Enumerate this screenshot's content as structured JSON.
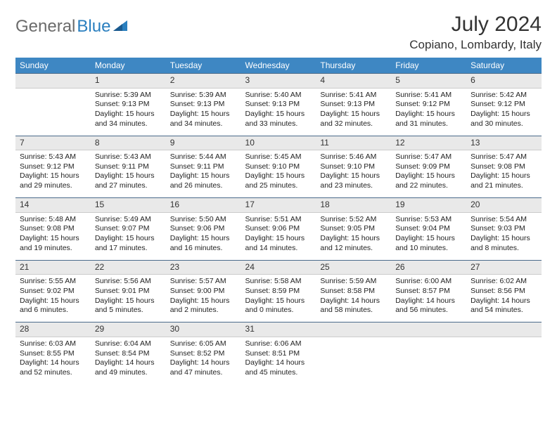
{
  "logo": {
    "part1": "General",
    "part2": "Blue"
  },
  "title": "July 2024",
  "location": "Copiano, Lombardy, Italy",
  "header_bg": "#3e87c3",
  "daynum_bg": "#e9e9e9",
  "border_color": "#4a6a8a",
  "day_names": [
    "Sunday",
    "Monday",
    "Tuesday",
    "Wednesday",
    "Thursday",
    "Friday",
    "Saturday"
  ],
  "weeks": [
    [
      null,
      {
        "n": "1",
        "sunrise": "5:39 AM",
        "sunset": "9:13 PM",
        "daylight": "15 hours and 34 minutes."
      },
      {
        "n": "2",
        "sunrise": "5:39 AM",
        "sunset": "9:13 PM",
        "daylight": "15 hours and 34 minutes."
      },
      {
        "n": "3",
        "sunrise": "5:40 AM",
        "sunset": "9:13 PM",
        "daylight": "15 hours and 33 minutes."
      },
      {
        "n": "4",
        "sunrise": "5:41 AM",
        "sunset": "9:13 PM",
        "daylight": "15 hours and 32 minutes."
      },
      {
        "n": "5",
        "sunrise": "5:41 AM",
        "sunset": "9:12 PM",
        "daylight": "15 hours and 31 minutes."
      },
      {
        "n": "6",
        "sunrise": "5:42 AM",
        "sunset": "9:12 PM",
        "daylight": "15 hours and 30 minutes."
      }
    ],
    [
      {
        "n": "7",
        "sunrise": "5:43 AM",
        "sunset": "9:12 PM",
        "daylight": "15 hours and 29 minutes."
      },
      {
        "n": "8",
        "sunrise": "5:43 AM",
        "sunset": "9:11 PM",
        "daylight": "15 hours and 27 minutes."
      },
      {
        "n": "9",
        "sunrise": "5:44 AM",
        "sunset": "9:11 PM",
        "daylight": "15 hours and 26 minutes."
      },
      {
        "n": "10",
        "sunrise": "5:45 AM",
        "sunset": "9:10 PM",
        "daylight": "15 hours and 25 minutes."
      },
      {
        "n": "11",
        "sunrise": "5:46 AM",
        "sunset": "9:10 PM",
        "daylight": "15 hours and 23 minutes."
      },
      {
        "n": "12",
        "sunrise": "5:47 AM",
        "sunset": "9:09 PM",
        "daylight": "15 hours and 22 minutes."
      },
      {
        "n": "13",
        "sunrise": "5:47 AM",
        "sunset": "9:08 PM",
        "daylight": "15 hours and 21 minutes."
      }
    ],
    [
      {
        "n": "14",
        "sunrise": "5:48 AM",
        "sunset": "9:08 PM",
        "daylight": "15 hours and 19 minutes."
      },
      {
        "n": "15",
        "sunrise": "5:49 AM",
        "sunset": "9:07 PM",
        "daylight": "15 hours and 17 minutes."
      },
      {
        "n": "16",
        "sunrise": "5:50 AM",
        "sunset": "9:06 PM",
        "daylight": "15 hours and 16 minutes."
      },
      {
        "n": "17",
        "sunrise": "5:51 AM",
        "sunset": "9:06 PM",
        "daylight": "15 hours and 14 minutes."
      },
      {
        "n": "18",
        "sunrise": "5:52 AM",
        "sunset": "9:05 PM",
        "daylight": "15 hours and 12 minutes."
      },
      {
        "n": "19",
        "sunrise": "5:53 AM",
        "sunset": "9:04 PM",
        "daylight": "15 hours and 10 minutes."
      },
      {
        "n": "20",
        "sunrise": "5:54 AM",
        "sunset": "9:03 PM",
        "daylight": "15 hours and 8 minutes."
      }
    ],
    [
      {
        "n": "21",
        "sunrise": "5:55 AM",
        "sunset": "9:02 PM",
        "daylight": "15 hours and 6 minutes."
      },
      {
        "n": "22",
        "sunrise": "5:56 AM",
        "sunset": "9:01 PM",
        "daylight": "15 hours and 5 minutes."
      },
      {
        "n": "23",
        "sunrise": "5:57 AM",
        "sunset": "9:00 PM",
        "daylight": "15 hours and 2 minutes."
      },
      {
        "n": "24",
        "sunrise": "5:58 AM",
        "sunset": "8:59 PM",
        "daylight": "15 hours and 0 minutes."
      },
      {
        "n": "25",
        "sunrise": "5:59 AM",
        "sunset": "8:58 PM",
        "daylight": "14 hours and 58 minutes."
      },
      {
        "n": "26",
        "sunrise": "6:00 AM",
        "sunset": "8:57 PM",
        "daylight": "14 hours and 56 minutes."
      },
      {
        "n": "27",
        "sunrise": "6:02 AM",
        "sunset": "8:56 PM",
        "daylight": "14 hours and 54 minutes."
      }
    ],
    [
      {
        "n": "28",
        "sunrise": "6:03 AM",
        "sunset": "8:55 PM",
        "daylight": "14 hours and 52 minutes."
      },
      {
        "n": "29",
        "sunrise": "6:04 AM",
        "sunset": "8:54 PM",
        "daylight": "14 hours and 49 minutes."
      },
      {
        "n": "30",
        "sunrise": "6:05 AM",
        "sunset": "8:52 PM",
        "daylight": "14 hours and 47 minutes."
      },
      {
        "n": "31",
        "sunrise": "6:06 AM",
        "sunset": "8:51 PM",
        "daylight": "14 hours and 45 minutes."
      },
      null,
      null,
      null
    ]
  ],
  "labels": {
    "sunrise": "Sunrise:",
    "sunset": "Sunset:",
    "daylight": "Daylight:"
  }
}
